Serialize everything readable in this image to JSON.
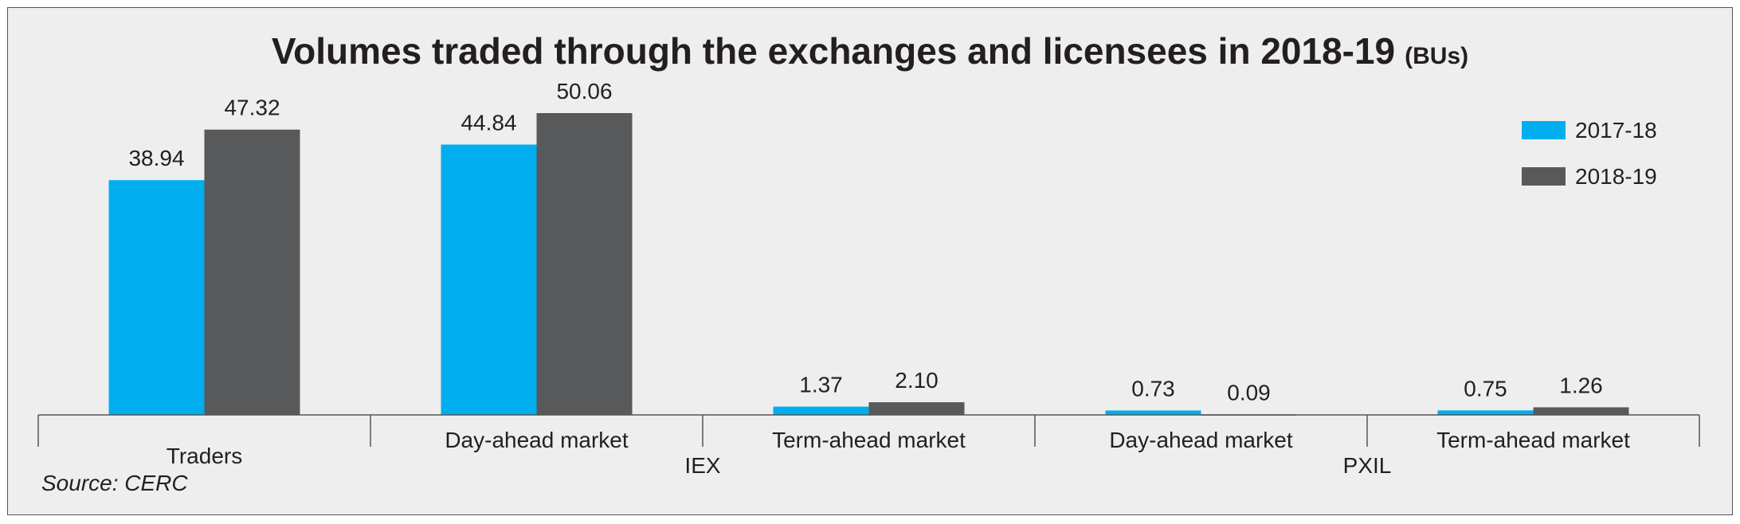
{
  "chart_data": {
    "type": "bar",
    "title": "Volumes traded through the exchanges and licensees in 2018-19",
    "unit": "(BUs)",
    "categories": [
      "Traders",
      "Day-ahead market",
      "Term-ahead market",
      "Day-ahead market",
      "Term-ahead market"
    ],
    "groups": [
      {
        "label": "",
        "span": [
          0,
          0
        ]
      },
      {
        "label": "IEX",
        "span": [
          1,
          2
        ]
      },
      {
        "label": "PXIL",
        "span": [
          3,
          4
        ]
      }
    ],
    "series": [
      {
        "name": "2017-18",
        "color": "#00aeef",
        "values": [
          38.94,
          44.84,
          1.37,
          0.73,
          0.75
        ],
        "labels": [
          "38.94",
          "44.84",
          "1.37",
          "0.73",
          "0.75"
        ]
      },
      {
        "name": "2018-19",
        "color": "#58595b",
        "values": [
          47.32,
          50.06,
          2.1,
          0.09,
          1.26
        ],
        "labels": [
          "47.32",
          "50.06",
          "2.10",
          "0.09",
          "1.26"
        ]
      }
    ],
    "ylim": [
      0,
      50.06
    ],
    "grid": false,
    "legend_position": "top-right",
    "source": "Source: CERC"
  }
}
